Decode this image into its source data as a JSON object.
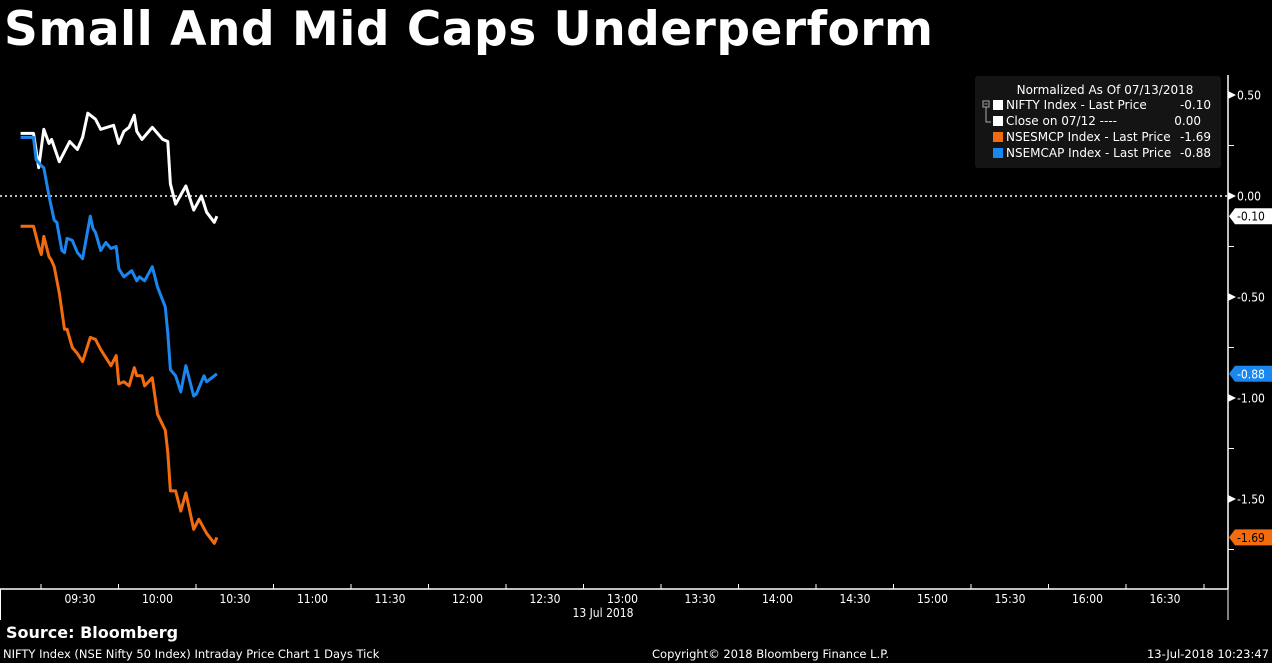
{
  "title": "Small And Mid Caps Underperform",
  "source": "Source: Bloomberg",
  "footer": {
    "description": "NIFTY Index (NSE Nifty 50 Index) Intraday Price Chart 1 Days  Tick",
    "copyright": "Copyright© 2018 Bloomberg Finance L.P.",
    "timestamp": "13-Jul-2018 10:23:47"
  },
  "legend": {
    "header": "Normalized As Of 07/13/2018",
    "items": [
      {
        "label": "NIFTY Index - Last Price",
        "value": "-0.10",
        "color": "#ffffff"
      },
      {
        "label": "Close on 07/12 ----",
        "value": "0.00",
        "color": "#ffffff"
      },
      {
        "label": "NSESMCP Index - Last Price",
        "value": "-1.69",
        "color": "#f26b0f"
      },
      {
        "label": "NSEMCAP Index - Last Price",
        "value": "-0.88",
        "color": "#1a86f0"
      }
    ]
  },
  "chart_data": {
    "type": "line",
    "title": "Small And Mid Caps Underperform",
    "xlabel": "13 Jul 2018",
    "ylabel": "",
    "x_ticks": [
      "09:30",
      "10:00",
      "10:30",
      "11:00",
      "11:30",
      "12:00",
      "12:30",
      "13:00",
      "13:30",
      "14:00",
      "14:30",
      "15:00",
      "15:30",
      "16:00",
      "16:30"
    ],
    "y_ticks": [
      "0.50",
      "0.00",
      "-0.50",
      "-1.00",
      "-1.50"
    ],
    "y_tick_values": [
      0.5,
      0.0,
      -0.5,
      -1.0,
      -1.5
    ],
    "ylim": [
      -1.95,
      0.6
    ],
    "xlim": [
      "09:07",
      "16:50"
    ],
    "axis_position": "right",
    "grid": false,
    "legend_placement": "top-right",
    "reference_line": {
      "name": "Close on 07/12",
      "value": 0.0,
      "style": "dotted",
      "color": "#ffffff"
    },
    "last_value_labels": [
      {
        "text": "-0.10",
        "value": -0.1,
        "color": "#ffffff",
        "text_color": "#000000"
      },
      {
        "text": "-0.88",
        "value": -0.88,
        "color": "#1a86f0",
        "text_color": "#ffffff"
      },
      {
        "text": "-1.69",
        "value": -1.69,
        "color": "#f26b0f",
        "text_color": "#000000"
      }
    ],
    "series": [
      {
        "name": "NIFTY Index - Last Price",
        "color": "#ffffff",
        "x": [
          "09:07",
          "09:12",
          "09:14",
          "09:16",
          "09:18",
          "09:19",
          "09:22",
          "09:26",
          "09:29",
          "09:31",
          "09:33",
          "09:36",
          "09:38",
          "09:43",
          "09:45",
          "09:47",
          "09:49",
          "09:51",
          "09:52",
          "09:54",
          "09:58",
          "10:02",
          "10:04",
          "10:05",
          "10:07",
          "10:11",
          "10:14",
          "10:17",
          "10:19",
          "10:22",
          "10:23"
        ],
        "y": [
          0.31,
          0.31,
          0.14,
          0.33,
          0.26,
          0.28,
          0.17,
          0.27,
          0.23,
          0.29,
          0.41,
          0.38,
          0.33,
          0.35,
          0.26,
          0.32,
          0.34,
          0.4,
          0.32,
          0.28,
          0.34,
          0.28,
          0.27,
          0.06,
          -0.04,
          0.05,
          -0.07,
          0.0,
          -0.08,
          -0.13,
          -0.1
        ]
      },
      {
        "name": "NSEMCAP Index - Last Price",
        "color": "#1a86f0",
        "x": [
          "09:07",
          "09:12",
          "09:13",
          "09:15",
          "09:16",
          "09:18",
          "09:20",
          "09:21",
          "09:23",
          "09:24",
          "09:25",
          "09:27",
          "09:29",
          "09:31",
          "09:34",
          "09:35",
          "09:36",
          "09:38",
          "09:40",
          "09:42",
          "09:44",
          "09:45",
          "09:47",
          "09:50",
          "09:52",
          "09:53",
          "09:55",
          "09:58",
          "10:00",
          "10:03",
          "10:04",
          "10:05",
          "10:07",
          "10:09",
          "10:11",
          "10:14",
          "10:15",
          "10:18",
          "10:19",
          "10:23"
        ],
        "y": [
          0.29,
          0.29,
          0.18,
          0.15,
          0.14,
          0.0,
          -0.12,
          -0.13,
          -0.27,
          -0.28,
          -0.21,
          -0.22,
          -0.28,
          -0.31,
          -0.1,
          -0.16,
          -0.18,
          -0.27,
          -0.23,
          -0.26,
          -0.25,
          -0.36,
          -0.4,
          -0.37,
          -0.42,
          -0.4,
          -0.42,
          -0.35,
          -0.45,
          -0.55,
          -0.68,
          -0.86,
          -0.89,
          -0.97,
          -0.84,
          -0.99,
          -0.98,
          -0.89,
          -0.92,
          -0.88
        ]
      },
      {
        "name": "NSESMCP Index - Last Price",
        "color": "#f26b0f",
        "x": [
          "09:07",
          "09:12",
          "09:14",
          "09:15",
          "09:16",
          "09:18",
          "09:19",
          "09:20",
          "09:22",
          "09:24",
          "09:25",
          "09:27",
          "09:29",
          "09:31",
          "09:34",
          "09:36",
          "09:38",
          "09:40",
          "09:42",
          "09:44",
          "09:45",
          "09:47",
          "09:49",
          "09:51",
          "09:52",
          "09:54",
          "09:55",
          "09:58",
          "10:00",
          "10:03",
          "10:04",
          "10:05",
          "10:07",
          "10:09",
          "10:11",
          "10:14",
          "10:16",
          "10:19",
          "10:22",
          "10:23"
        ],
        "y": [
          -0.15,
          -0.15,
          -0.25,
          -0.29,
          -0.2,
          -0.3,
          -0.32,
          -0.35,
          -0.48,
          -0.66,
          -0.66,
          -0.75,
          -0.78,
          -0.82,
          -0.7,
          -0.71,
          -0.76,
          -0.8,
          -0.84,
          -0.79,
          -0.93,
          -0.92,
          -0.94,
          -0.85,
          -0.89,
          -0.89,
          -0.94,
          -0.9,
          -1.08,
          -1.16,
          -1.27,
          -1.46,
          -1.46,
          -1.56,
          -1.47,
          -1.65,
          -1.6,
          -1.67,
          -1.72,
          -1.69
        ]
      }
    ]
  }
}
